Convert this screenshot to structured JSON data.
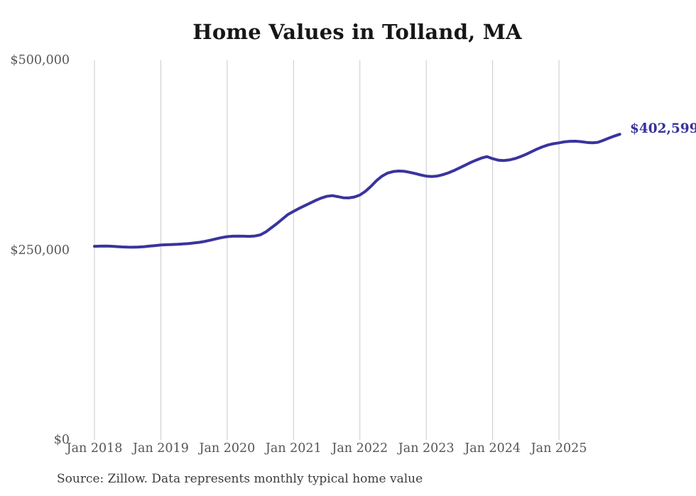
{
  "chart": {
    "title": "Home Values in Tolland, MA",
    "end_label": "$402,599",
    "source": "Source: Zillow. Data represents monthly typical home value",
    "line_color": "#39349e",
    "end_label_color": "#37329b",
    "gridline_color": "#c9c9c9",
    "axis_text_color": "#555555"
  },
  "chart_data": {
    "type": "line",
    "title": "Home Values in Tolland, MA",
    "xlabel": "",
    "ylabel": "",
    "ylim": [
      0,
      500000
    ],
    "grid": "vertical-yearly",
    "legend_position": "none",
    "x_ticks": [
      "Jan 2018",
      "Jan 2019",
      "Jan 2020",
      "Jan 2021",
      "Jan 2022",
      "Jan 2023",
      "Jan 2024",
      "Jan 2025"
    ],
    "y_ticks": [
      {
        "label": "$500,000",
        "value": 500000
      },
      {
        "label": "$250,000",
        "value": 250000
      },
      {
        "label": "$0",
        "value": 0
      }
    ],
    "x_start_month": "Jan 2018",
    "x_end_month": "Dec 2025",
    "end_value": 402599,
    "annotation": "$402,599",
    "series": [
      {
        "name": "Typical home value",
        "values": [
          255000,
          255200,
          255400,
          255100,
          254700,
          254200,
          253900,
          253800,
          254100,
          254600,
          255300,
          256000,
          256700,
          257100,
          257400,
          257700,
          258100,
          258700,
          259400,
          260300,
          261600,
          263200,
          264900,
          266500,
          267800,
          268300,
          268500,
          268300,
          268100,
          268600,
          270100,
          274000,
          279500,
          285000,
          291000,
          297000,
          301000,
          305000,
          308500,
          312000,
          315500,
          318500,
          320800,
          321800,
          320500,
          319000,
          318800,
          320000,
          322500,
          327500,
          334000,
          341500,
          347500,
          351500,
          353500,
          354200,
          353800,
          352500,
          350800,
          349000,
          347500,
          347000,
          347600,
          349300,
          351800,
          354800,
          358200,
          361800,
          365300,
          368500,
          371300,
          373200,
          370500,
          368500,
          368000,
          368800,
          370500,
          373000,
          376000,
          379500,
          383000,
          386000,
          388500,
          390200,
          391300,
          392600,
          393400,
          393500,
          392900,
          391900,
          391300,
          392000,
          394500,
          397500,
          400200,
          402599
        ]
      }
    ]
  }
}
